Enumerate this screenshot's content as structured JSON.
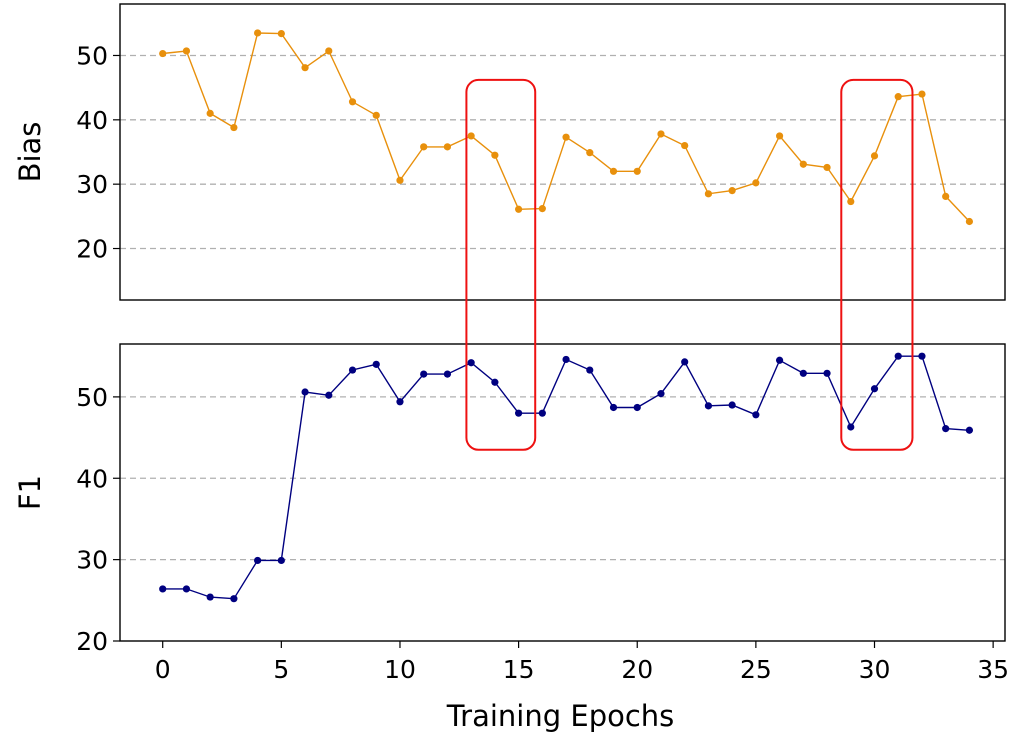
{
  "chart_data": [
    {
      "type": "line",
      "ylabel": "Bias",
      "xlabel": "",
      "xlim": [
        -1.8,
        35.5
      ],
      "ylim": [
        12,
        58
      ],
      "yticks": [
        20,
        30,
        40,
        50
      ],
      "xticks": [],
      "grid": "horizontal-dashed",
      "color": "#e8900c",
      "series": [
        {
          "x": [
            0,
            1,
            2,
            3,
            4,
            5,
            6,
            7,
            8,
            9,
            10,
            11,
            12,
            13,
            14,
            15,
            16,
            17,
            18,
            19,
            20,
            21,
            22,
            23,
            24,
            25,
            26,
            27,
            28,
            29,
            30,
            31,
            32,
            33,
            34
          ],
          "values": [
            50.3,
            50.7,
            41.0,
            38.8,
            53.5,
            53.4,
            48.1,
            50.7,
            42.8,
            40.7,
            30.6,
            35.8,
            35.8,
            37.5,
            34.5,
            26.1,
            26.2,
            37.3,
            34.9,
            32.0,
            32.0,
            37.8,
            36.0,
            28.5,
            29.0,
            30.2,
            37.5,
            33.1,
            32.6,
            27.3,
            34.4,
            43.6,
            44.0,
            28.1,
            24.2
          ]
        }
      ],
      "highlights": [
        {
          "x_from": 12.8,
          "x_to": 15.7,
          "y_from": 43.5,
          "y_to": 46.2
        },
        {
          "x_from": 28.6,
          "x_to": 31.6,
          "y_from": 43.5,
          "y_to": 46.2
        }
      ]
    },
    {
      "type": "line",
      "ylabel": "F1",
      "xlabel": "Training Epochs",
      "xlim": [
        -1.8,
        35.5
      ],
      "ylim": [
        20,
        56.5
      ],
      "yticks": [
        20,
        30,
        40,
        50
      ],
      "xticks": [
        0,
        5,
        10,
        15,
        20,
        25,
        30,
        35
      ],
      "grid": "horizontal-dashed",
      "color": "#000080",
      "series": [
        {
          "x": [
            0,
            1,
            2,
            3,
            4,
            5,
            6,
            7,
            8,
            9,
            10,
            11,
            12,
            13,
            14,
            15,
            16,
            17,
            18,
            19,
            20,
            21,
            22,
            23,
            24,
            25,
            26,
            27,
            28,
            29,
            30,
            31,
            32,
            33,
            34
          ],
          "values": [
            26.4,
            26.4,
            25.4,
            25.2,
            29.9,
            29.9,
            50.6,
            50.2,
            53.3,
            54.0,
            49.4,
            52.8,
            52.8,
            54.2,
            51.8,
            48.0,
            48.0,
            54.6,
            53.3,
            48.7,
            48.7,
            50.4,
            54.3,
            48.9,
            49.0,
            47.8,
            54.5,
            52.9,
            52.9,
            46.3,
            51.0,
            55.0,
            55.0,
            46.1,
            45.9
          ]
        }
      ]
    }
  ]
}
